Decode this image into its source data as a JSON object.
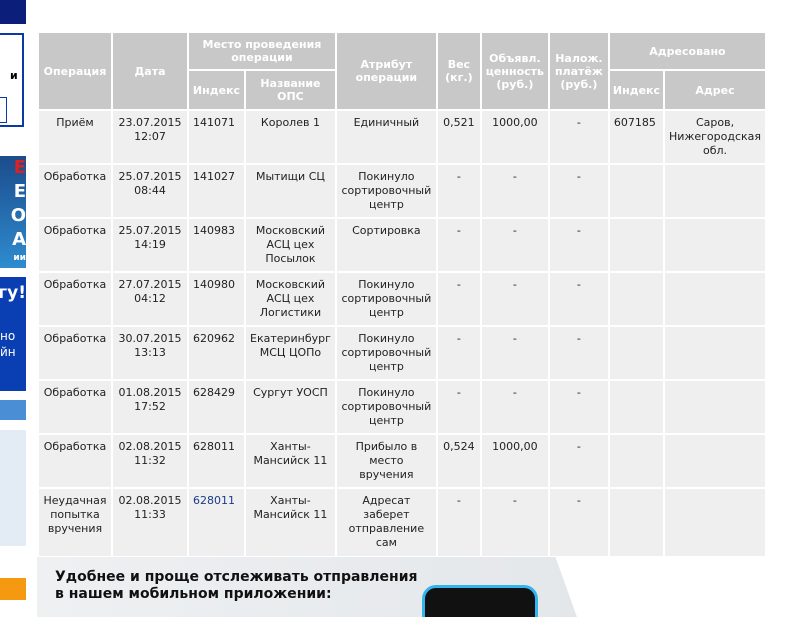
{
  "sidebar": {
    "label_fragment": "и",
    "banner_letters": [
      "Е",
      "Е",
      "О",
      "А"
    ],
    "banner_caption": "ии",
    "promo_title": "гу!",
    "promo_lines": [
      "но",
      "йн"
    ]
  },
  "table": {
    "headers": {
      "operation": "Операция",
      "date": "Дата",
      "place": "Место проведения операции",
      "index": "Индекс",
      "ops_name": "Название ОПС",
      "attribute": "Атрибут операции",
      "weight": "Вес (кг.)",
      "declared": "Объявл. ценность (руб.)",
      "cod": "Налож. платёж (руб.)",
      "addressed": "Адресовано",
      "addr_index": "Индекс",
      "address": "Адрес"
    },
    "rows": [
      {
        "operation": "Приём",
        "date": "23.07.2015",
        "time": "12:07",
        "index": "141071",
        "ops": "Королев 1",
        "attr": "Единичный",
        "weight": "0,521",
        "declared": "1000,00",
        "cod": "-",
        "addr_index": "607185",
        "address": "Саров, Нижегородская обл."
      },
      {
        "operation": "Обработка",
        "date": "25.07.2015",
        "time": "08:44",
        "index": "141027",
        "ops": "Мытищи СЦ",
        "attr": "Покинуло сортировочный центр",
        "weight": "-",
        "declared": "-",
        "cod": "-",
        "addr_index": "",
        "address": ""
      },
      {
        "operation": "Обработка",
        "date": "25.07.2015",
        "time": "14:19",
        "index": "140983",
        "ops": "Московский АСЦ цех Посылок",
        "attr": "Сортировка",
        "weight": "-",
        "declared": "-",
        "cod": "-",
        "addr_index": "",
        "address": ""
      },
      {
        "operation": "Обработка",
        "date": "27.07.2015",
        "time": "04:12",
        "index": "140980",
        "ops": "Московский АСЦ цех Логистики",
        "attr": "Покинуло сортировочный центр",
        "weight": "-",
        "declared": "-",
        "cod": "-",
        "addr_index": "",
        "address": ""
      },
      {
        "operation": "Обработка",
        "date": "30.07.2015",
        "time": "13:13",
        "index": "620962",
        "ops": "Екатеринбург МСЦ ЦОПо",
        "attr": "Покинуло сортировочный центр",
        "weight": "-",
        "declared": "-",
        "cod": "-",
        "addr_index": "",
        "address": ""
      },
      {
        "operation": "Обработка",
        "date": "01.08.2015",
        "time": "17:52",
        "index": "628429",
        "ops": "Сургут УОСП",
        "attr": "Покинуло сортировочный центр",
        "weight": "-",
        "declared": "-",
        "cod": "-",
        "addr_index": "",
        "address": ""
      },
      {
        "operation": "Обработка",
        "date": "02.08.2015",
        "time": "11:32",
        "index": "628011",
        "ops": "Ханты-Мансийск 11",
        "attr": "Прибыло в место вручения",
        "weight": "0,524",
        "declared": "1000,00",
        "cod": "-",
        "addr_index": "",
        "address": ""
      },
      {
        "operation": "Неудачная попытка вручения",
        "date": "02.08.2015",
        "time": "11:33",
        "index": "628011",
        "ops": "Ханты-Мансийск 11",
        "attr": "Адресат заберет отправление сам",
        "weight": "-",
        "declared": "-",
        "cod": "-",
        "addr_index": "",
        "address": "",
        "index_link": true
      }
    ]
  },
  "promo": {
    "line1": "Удобнее и проще отслеживать отправления",
    "line2": "в нашем мобильном приложении:"
  }
}
